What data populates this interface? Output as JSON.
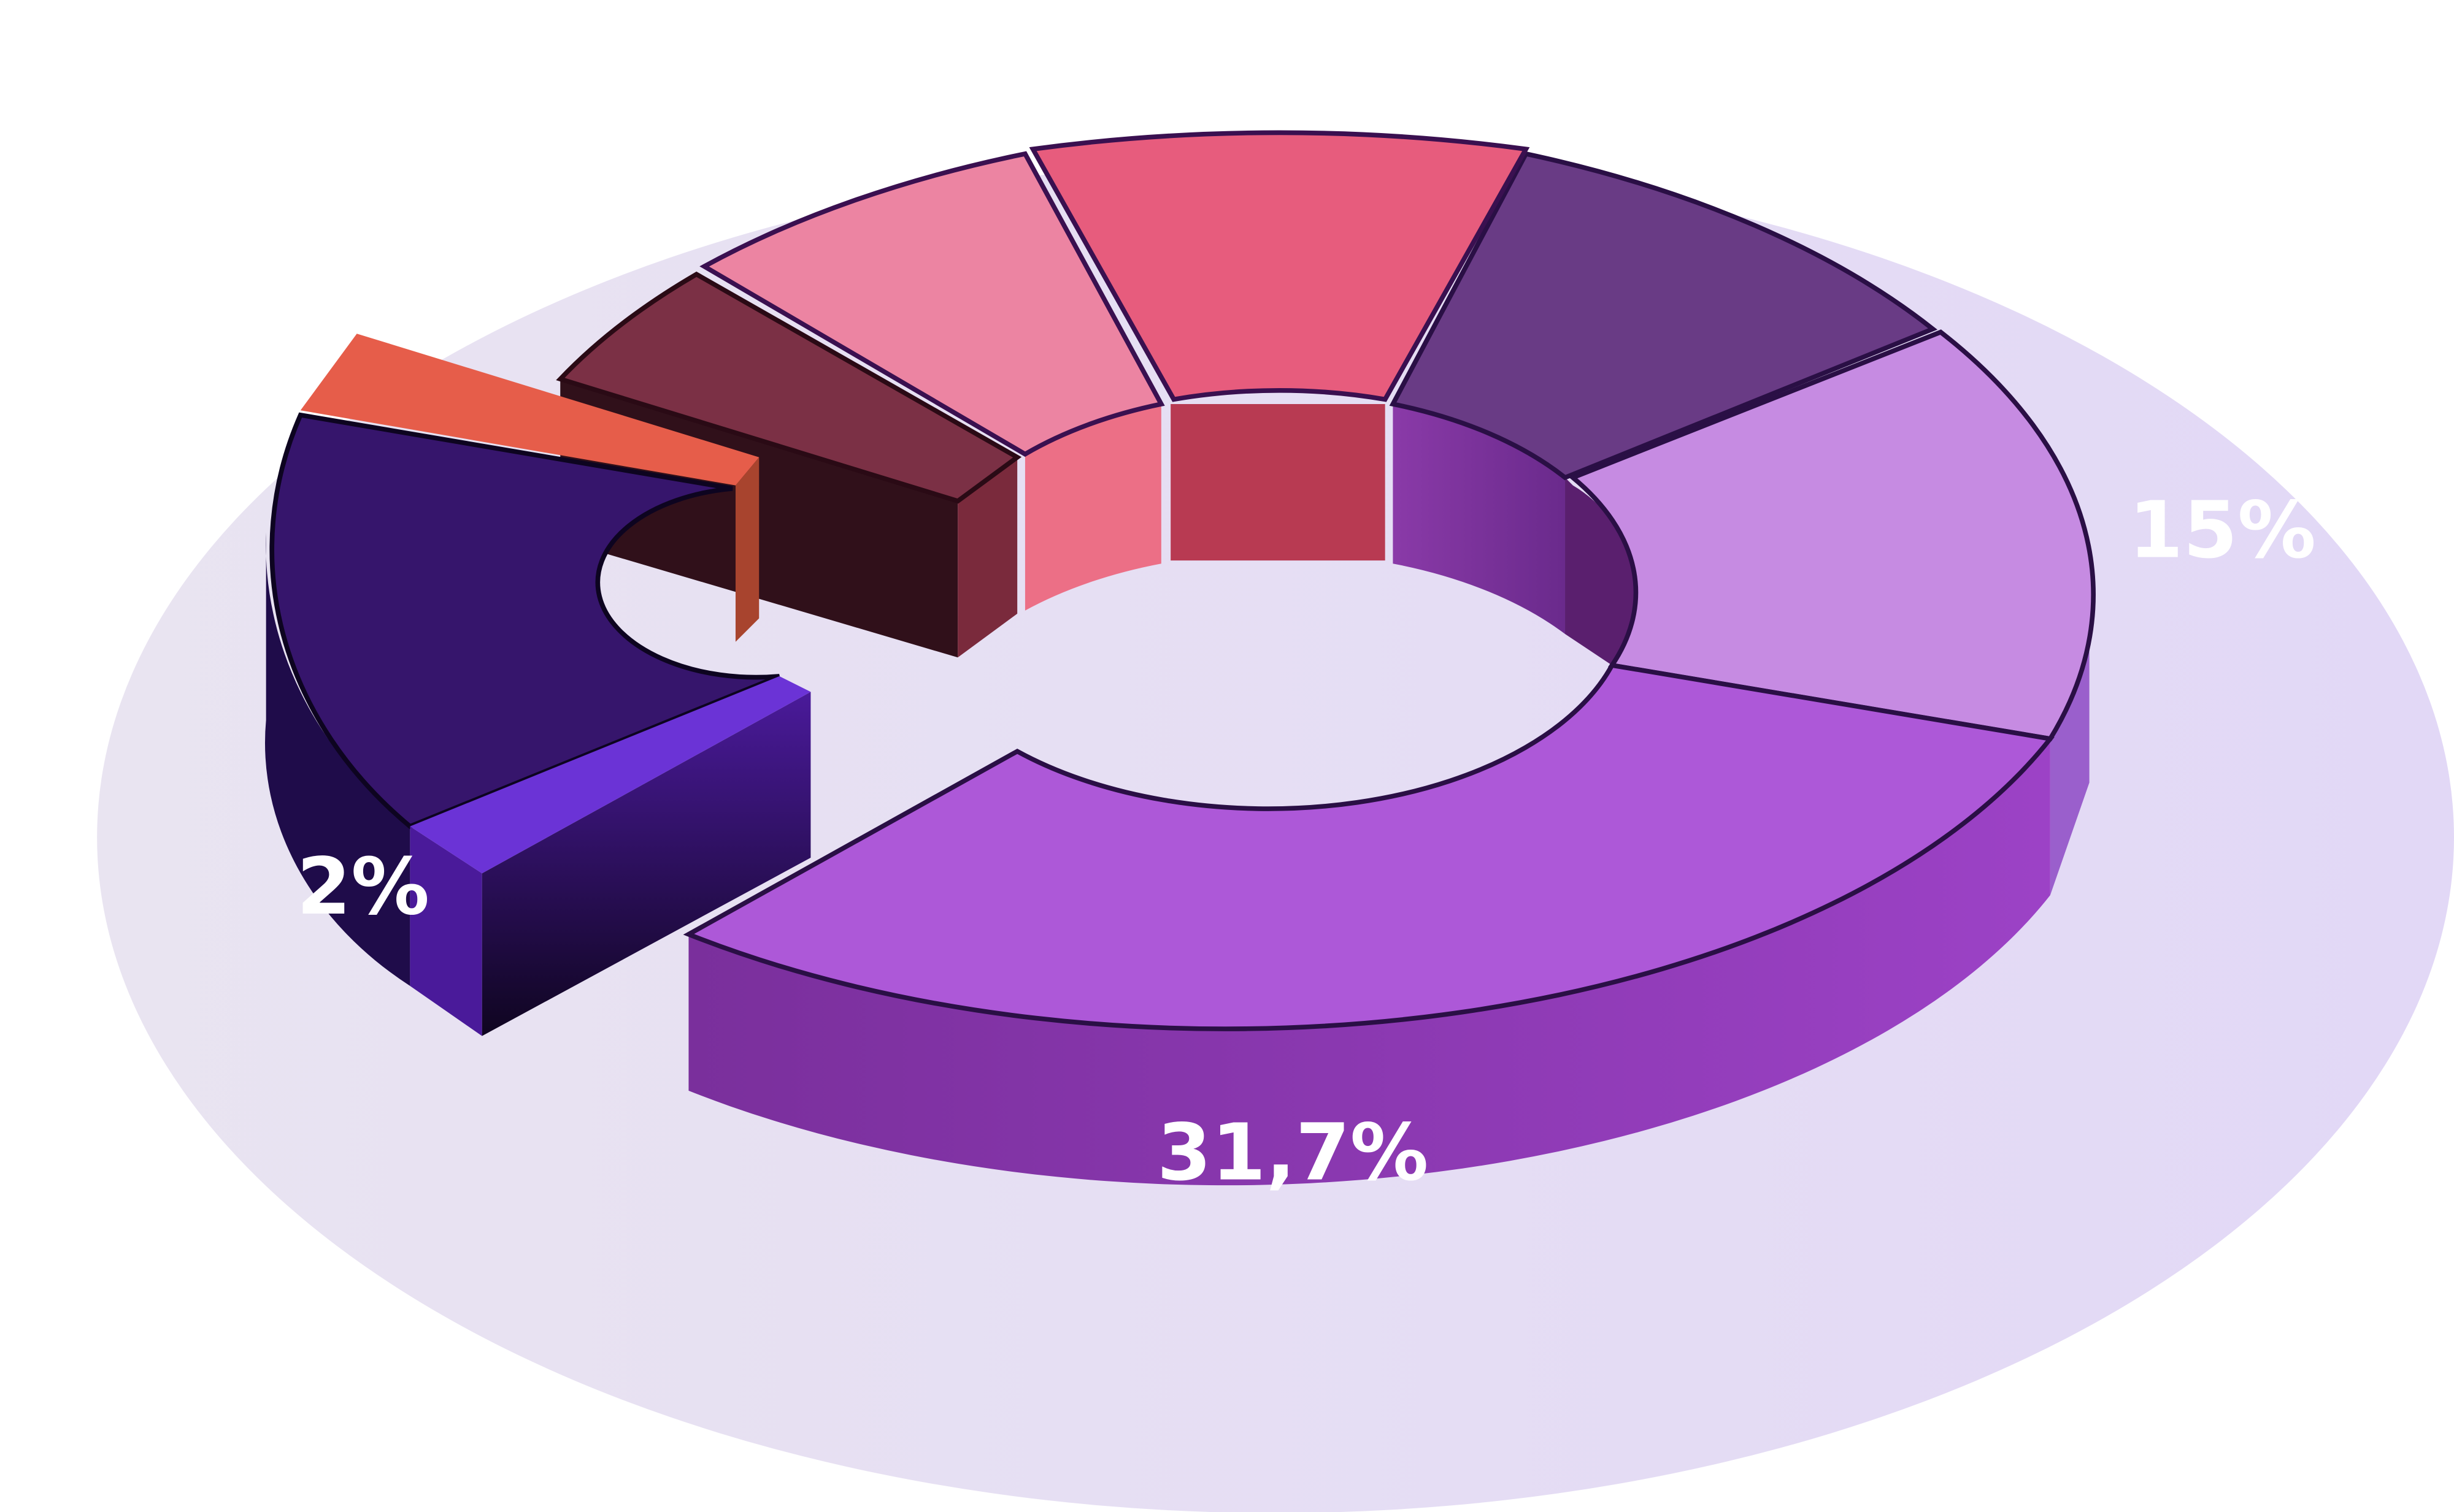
{
  "labels": [
    "15%",
    "31,7%",
    "2%"
  ]
}
